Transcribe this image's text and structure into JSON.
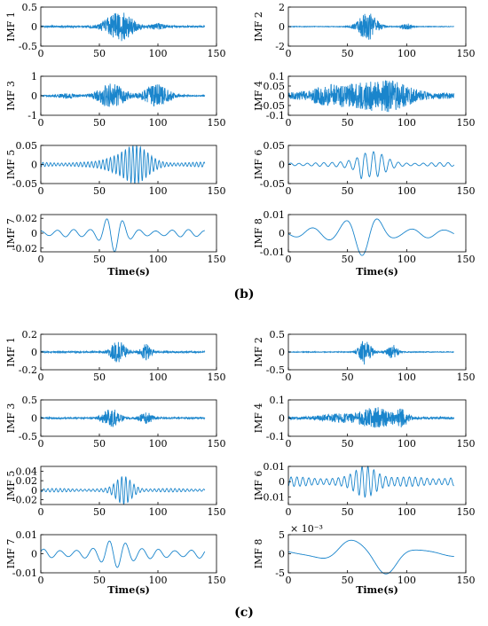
{
  "chart_data": [
    {
      "type": "line",
      "panel_label": "(b)",
      "x_axis_title": "Time(s)",
      "subplots": [
        {
          "ylabel": "IMF 1",
          "xlim": [
            0,
            150
          ],
          "ylim": [
            -0.5,
            0.5
          ],
          "xticks": [
            "0",
            "50",
            "100",
            "150"
          ],
          "yticks": [
            "0.5",
            "0",
            "-0.5"
          ],
          "exp": "",
          "signal": {
            "kind": "noise",
            "base": 0.02,
            "bursts": [
              [
                67,
                13,
                0.4
              ],
              [
                100,
                7,
                0.06
              ]
            ],
            "seed": 11
          }
        },
        {
          "ylabel": "IMF 2",
          "xlim": [
            0,
            150
          ],
          "ylim": [
            -2,
            2
          ],
          "xticks": [
            "0",
            "50",
            "100",
            "150"
          ],
          "yticks": [
            "2",
            "0",
            "-2"
          ],
          "exp": "",
          "signal": {
            "kind": "noise",
            "base": 0.03,
            "bursts": [
              [
                67,
                9,
                1.4
              ],
              [
                100,
                5,
                0.3
              ]
            ],
            "seed": 12
          }
        },
        {
          "ylabel": "IMF 3",
          "xlim": [
            0,
            150
          ],
          "ylim": [
            -1,
            1
          ],
          "xticks": [
            "0",
            "50",
            "100",
            "150"
          ],
          "yticks": [
            "1",
            "0",
            "-1"
          ],
          "exp": "",
          "signal": {
            "kind": "noise",
            "base": 0.03,
            "bursts": [
              [
                22,
                8,
                0.12
              ],
              [
                60,
                13,
                0.6
              ],
              [
                99,
                12,
                0.55
              ]
            ],
            "seed": 13
          }
        },
        {
          "ylabel": "IMF 4",
          "xlim": [
            0,
            150
          ],
          "ylim": [
            -0.1,
            0.1
          ],
          "xticks": [
            "0",
            "50",
            "100",
            "150"
          ],
          "yticks": [
            "0.1",
            "0.05",
            "0",
            "-0.05",
            "-0.1"
          ],
          "exp": "",
          "signal": {
            "kind": "noise",
            "base": 0.015,
            "bursts": [
              [
                38,
                22,
                0.04
              ],
              [
                80,
                25,
                0.07
              ]
            ],
            "seed": 14
          }
        },
        {
          "ylabel": "IMF 5",
          "xlim": [
            0,
            150
          ],
          "ylim": [
            -0.05,
            0.05
          ],
          "xticks": [
            "0",
            "50",
            "100",
            "150"
          ],
          "yticks": [
            "0.05",
            "0",
            "-0.05"
          ],
          "exp": "",
          "signal": {
            "kind": "osc",
            "base": 0.005,
            "per": 3.2,
            "bursts": [
              [
                76,
                17,
                0.045
              ]
            ],
            "seed": 15
          }
        },
        {
          "ylabel": "IMF 6",
          "xlim": [
            0,
            150
          ],
          "ylim": [
            -0.05,
            0.05
          ],
          "xticks": [
            "0",
            "50",
            "100",
            "150"
          ],
          "yticks": [
            "0.05",
            "0",
            "-0.05"
          ],
          "exp": "",
          "signal": {
            "kind": "osc",
            "base": 0.004,
            "per": 7,
            "bursts": [
              [
                68,
                15,
                0.03
              ],
              [
                62,
                2,
                0.02
              ]
            ],
            "seed": 16
          }
        },
        {
          "ylabel": "IMF 7",
          "xlim": [
            0,
            150
          ],
          "ylim": [
            -0.025,
            0.025
          ],
          "xticks": [
            "0",
            "50",
            "100",
            "150"
          ],
          "yticks": [
            "0.02",
            "0",
            "-0.02"
          ],
          "exp": "",
          "signal": {
            "kind": "osc",
            "base": 0.004,
            "per": 14,
            "bursts": [
              [
                60,
                11,
                0.022
              ]
            ],
            "seed": 17
          }
        },
        {
          "ylabel": "IMF 8",
          "xlim": [
            0,
            150
          ],
          "ylim": [
            -0.01,
            0.01
          ],
          "xticks": [
            "0",
            "50",
            "100",
            "150"
          ],
          "yticks": [
            "0.01",
            "0",
            "-0.01"
          ],
          "exp": "",
          "signal": {
            "kind": "osc",
            "base": 0.002,
            "per": 28,
            "bursts": [
              [
                60,
                22,
                0.008
              ]
            ],
            "seed": 18
          }
        }
      ]
    },
    {
      "type": "line",
      "panel_label": "(c)",
      "x_axis_title": "Time(s)",
      "subplots": [
        {
          "ylabel": "IMF 1",
          "xlim": [
            0,
            150
          ],
          "ylim": [
            -0.2,
            0.2
          ],
          "xticks": [
            "0",
            "50",
            "100",
            "150"
          ],
          "yticks": [
            "0.2",
            "0",
            "-0.2"
          ],
          "exp": "",
          "signal": {
            "kind": "noise",
            "base": 0.008,
            "bursts": [
              [
                66,
                7,
                0.12
              ],
              [
                90,
                5,
                0.09
              ]
            ],
            "seed": 21
          }
        },
        {
          "ylabel": "IMF 2",
          "xlim": [
            0,
            150
          ],
          "ylim": [
            -0.5,
            0.5
          ],
          "xticks": [
            "0",
            "50",
            "100",
            "150"
          ],
          "yticks": [
            "0.5",
            "0",
            "-0.5"
          ],
          "exp": "",
          "signal": {
            "kind": "noise",
            "base": 0.01,
            "bursts": [
              [
                65,
                6,
                0.35
              ],
              [
                88,
                5,
                0.2
              ]
            ],
            "seed": 22
          }
        },
        {
          "ylabel": "IMF 3",
          "xlim": [
            0,
            150
          ],
          "ylim": [
            -0.5,
            0.5
          ],
          "xticks": [
            "0",
            "50",
            "100",
            "150"
          ],
          "yticks": [
            "0.5",
            "0",
            "-0.5"
          ],
          "exp": "",
          "signal": {
            "kind": "noise",
            "base": 0.02,
            "bursts": [
              [
                60,
                8,
                0.25
              ],
              [
                90,
                6,
                0.15
              ]
            ],
            "seed": 23
          }
        },
        {
          "ylabel": "IMF 4",
          "xlim": [
            0,
            150
          ],
          "ylim": [
            -0.1,
            0.1
          ],
          "xticks": [
            "0",
            "50",
            "100",
            "150"
          ],
          "yticks": [
            "0.1",
            "0",
            "-0.1"
          ],
          "exp": "",
          "signal": {
            "kind": "noise",
            "base": 0.006,
            "bursts": [
              [
                45,
                20,
                0.02
              ],
              [
                75,
                14,
                0.055
              ],
              [
                96,
                6,
                0.04
              ]
            ],
            "seed": 24
          }
        },
        {
          "ylabel": "IMF 5",
          "xlim": [
            0,
            150
          ],
          "ylim": [
            -0.03,
            0.05
          ],
          "xticks": [
            "0",
            "50",
            "100",
            "150"
          ],
          "yticks": [
            "0.04",
            "0.02",
            "0",
            "-0.02"
          ],
          "exp": "",
          "signal": {
            "kind": "osc",
            "base": 0.003,
            "per": 3.5,
            "bursts": [
              [
                72,
                9,
                0.025
              ]
            ],
            "seed": 25
          }
        },
        {
          "ylabel": "IMF 6",
          "xlim": [
            0,
            150
          ],
          "ylim": [
            -0.015,
            0.01
          ],
          "xticks": [
            "0",
            "50",
            "100",
            "150"
          ],
          "yticks": [
            "0.01",
            "0",
            "-0.01"
          ],
          "exp": "",
          "signal": {
            "kind": "osc",
            "base": 0.0025,
            "per": 5,
            "bursts": [
              [
                68,
                12,
                0.008
              ]
            ],
            "seed": 26
          }
        },
        {
          "ylabel": "IMF 7",
          "xlim": [
            0,
            150
          ],
          "ylim": [
            -0.01,
            0.01
          ],
          "xticks": [
            "0",
            "50",
            "100",
            "150"
          ],
          "yticks": [
            "0.01",
            "0",
            "-0.01"
          ],
          "exp": "",
          "signal": {
            "kind": "osc",
            "base": 0.002,
            "per": 14,
            "bursts": [
              [
                66,
                12,
                0.007
              ]
            ],
            "seed": 27
          }
        },
        {
          "ylabel": "IMF 8",
          "xlim": [
            0,
            150
          ],
          "ylim": [
            -5,
            5
          ],
          "xticks": [
            "0",
            "50",
            "100",
            "150"
          ],
          "yticks": [
            "5",
            "0",
            "-5"
          ],
          "exp": "× 10⁻³",
          "signal": {
            "kind": "osc",
            "base": 0.6,
            "per": 60,
            "bursts": [
              [
                70,
                30,
                4.5
              ]
            ],
            "seed": 28
          }
        }
      ]
    }
  ]
}
